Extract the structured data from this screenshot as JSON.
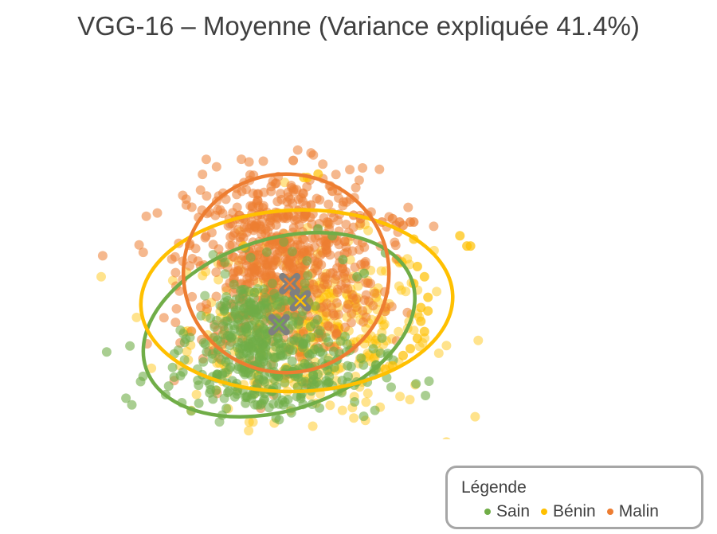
{
  "chart_data": {
    "type": "scatter",
    "title": "VGG-16 – Moyenne (Variance expliquée 41.4%)",
    "xlabel": "",
    "ylabel": "",
    "xlim": [
      -4,
      6
    ],
    "ylim": [
      -4,
      4.5
    ],
    "grid": false,
    "legend": {
      "title": "Légende",
      "placement": "bottom-right"
    },
    "series": [
      {
        "name": "Sain",
        "color": "#70ad47",
        "centroid": [
          -0.6,
          -1.0
        ],
        "ellipse": {
          "cx": -0.6,
          "cy": -1.0,
          "rx": 3.95,
          "ry": 2.5,
          "angle_deg": -18
        }
      },
      {
        "name": "Bénin",
        "color": "#ffc000",
        "centroid": [
          0.0,
          -0.3
        ],
        "ellipse": {
          "cx": -0.1,
          "cy": -0.3,
          "rx": 4.4,
          "ry": 2.65,
          "angle_deg": -2
        }
      },
      {
        "name": "Malin",
        "color": "#ed7d31",
        "centroid": [
          -0.3,
          0.2
        ],
        "ellipse": {
          "cx": -0.4,
          "cy": 0.5,
          "rx": 2.9,
          "ry": 2.9,
          "angle_deg": 0
        }
      }
    ],
    "outliers": {
      "Malin": [
        [
          -0.2,
          3.8
        ],
        [
          0.9,
          2.9
        ],
        [
          1.5,
          2.2
        ],
        [
          1.7,
          2.1
        ],
        [
          1.9,
          2.2
        ],
        [
          2.3,
          2.0
        ],
        [
          2.6,
          2.1
        ],
        [
          2.8,
          2.0
        ],
        [
          2.9,
          1.9
        ],
        [
          3.1,
          2.0
        ],
        [
          3.2,
          2.0
        ],
        [
          2.7,
          1.9
        ],
        [
          0.3,
          2.5
        ],
        [
          -1.2,
          2.2
        ],
        [
          -1.6,
          2.1
        ]
      ],
      "Bénin": [
        [
          0.1,
          3.3
        ],
        [
          0.2,
          3.3
        ],
        [
          0.5,
          3.4
        ],
        [
          3.2,
          1.5
        ],
        [
          4.5,
          1.6
        ],
        [
          4.7,
          1.3
        ],
        [
          4.8,
          1.3
        ],
        [
          3.3,
          0.7
        ],
        [
          3.5,
          0.4
        ],
        [
          3.2,
          0.2
        ],
        [
          3.6,
          -0.2
        ],
        [
          3.4,
          -0.5
        ],
        [
          3.6,
          -0.6
        ],
        [
          3.4,
          -0.9
        ],
        [
          3.5,
          -1.2
        ],
        [
          3.3,
          -1.4
        ],
        [
          3.1,
          -1.7
        ],
        [
          2.9,
          -1.9
        ],
        [
          2.6,
          -2.2
        ],
        [
          2.4,
          -2.3
        ],
        [
          -1.6,
          1.3
        ]
      ],
      "Sain": [
        [
          2.4,
          1.1
        ],
        [
          1.8,
          0.5
        ],
        [
          1.6,
          0.4
        ],
        [
          0.9,
          1.6
        ],
        [
          0.5,
          1.8
        ],
        [
          1.2,
          0.9
        ]
      ]
    }
  }
}
